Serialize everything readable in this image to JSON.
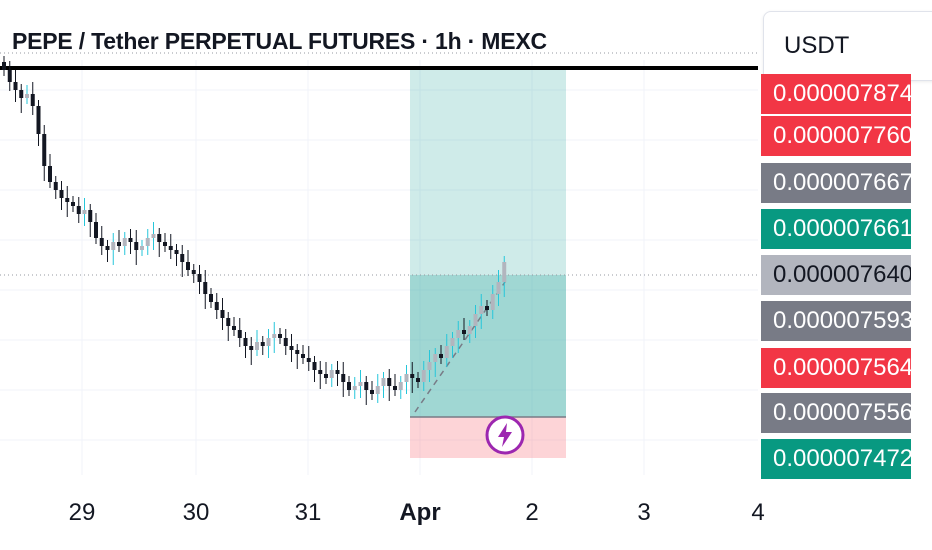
{
  "header": {
    "title": "PEPE / Tether PERPETUAL FUTURES · 1h · MEXC"
  },
  "currency_selector": {
    "label": "USDT"
  },
  "price_scale": {
    "tags": [
      {
        "value": "0.000007874",
        "color": "#f23645"
      },
      {
        "value": "0.000007760",
        "color": "#f23645"
      },
      {
        "value": "0.000007667",
        "color": "#787b86"
      },
      {
        "value": "0.000007661",
        "color": "#089981"
      },
      {
        "value": "0.000007640",
        "color": "#b2b5be"
      },
      {
        "value": "0.000007593",
        "color": "#787b86"
      },
      {
        "value": "0.000007564",
        "color": "#f23645"
      },
      {
        "value": "0.000007556",
        "color": "#787b86"
      },
      {
        "value": "0.000007472",
        "color": "#089981"
      }
    ]
  },
  "time_axis": {
    "labels": [
      {
        "text": "29",
        "bold": false
      },
      {
        "text": "30",
        "bold": false
      },
      {
        "text": "31",
        "bold": false
      },
      {
        "text": "Apr",
        "bold": true
      },
      {
        "text": "2",
        "bold": false
      },
      {
        "text": "3",
        "bold": false
      },
      {
        "text": "4",
        "bold": false
      }
    ]
  },
  "chart_data": {
    "type": "candlestick",
    "interval": "1h",
    "up_color": "#b2b5be",
    "down_color": "#131722",
    "wick_up_color": "#26c6da",
    "grid": true,
    "horizontal_line": {
      "style": "solid",
      "color": "#000000"
    },
    "last_price_line": {
      "style": "dotted"
    },
    "position": {
      "side": "long",
      "profit_zone_color": "#26a69a",
      "stop_zone_color": "#f7525f"
    },
    "candles_close_index": [
      100,
      97,
      95,
      93,
      94,
      91,
      84,
      76,
      72,
      70,
      68,
      67,
      66,
      64,
      65,
      62,
      58,
      56,
      55,
      57,
      56,
      58,
      57,
      55,
      56,
      58,
      59,
      57,
      56,
      55,
      54,
      52,
      50,
      49,
      47,
      44,
      42,
      40,
      38,
      36,
      35,
      33,
      31,
      30,
      32,
      31,
      33,
      34,
      33,
      31,
      30,
      29,
      28,
      27,
      25,
      24,
      23,
      25,
      24,
      22,
      20,
      21,
      22,
      20,
      19,
      21,
      23,
      21,
      20,
      22,
      24,
      23,
      22,
      25,
      27,
      29,
      28,
      31,
      33,
      35,
      34,
      36,
      39,
      41,
      40,
      44,
      47,
      52
    ]
  }
}
